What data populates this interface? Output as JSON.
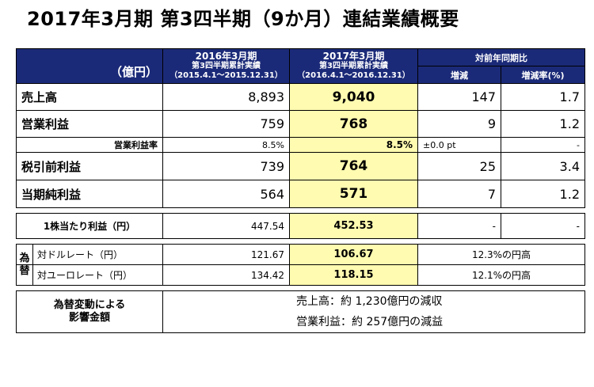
{
  "title": "2017年3月期 第3四半期（9か月）連結業績概要",
  "header": {
    "unit": "（億円）",
    "prev": {
      "line1": "2016年3月期",
      "line2": "第3四半期累計実績",
      "line3": "（2015.4.1〜2015.12.31）"
    },
    "curr": {
      "line1": "2017年3月期",
      "line2": "第3四半期累計実績",
      "line3": "（2016.4.1〜2016.12.31）"
    },
    "yoy": "対前年同期比",
    "change": "増減",
    "change_pct": "増減率(%)"
  },
  "rows": {
    "sales": {
      "label": "売上高",
      "prev": "8,893",
      "curr": "9,040",
      "change": "147",
      "pct": "1.7"
    },
    "op": {
      "label": "営業利益",
      "prev": "759",
      "curr": "768",
      "change": "9",
      "pct": "1.2"
    },
    "op_margin": {
      "label": "営業利益率",
      "prev": "8.5%",
      "curr": "8.5%",
      "change": "±0.0 pt",
      "pct": "-"
    },
    "pretax": {
      "label": "税引前利益",
      "prev": "739",
      "curr": "764",
      "change": "25",
      "pct": "3.4"
    },
    "net": {
      "label": "当期純利益",
      "prev": "564",
      "curr": "571",
      "change": "7",
      "pct": "1.2"
    },
    "eps": {
      "label": "1株当たり利益（円）",
      "prev": "447.54",
      "curr": "452.53",
      "change": "-",
      "pct": "-"
    }
  },
  "fx": {
    "label_top": "為",
    "label_bottom": "替",
    "usd": {
      "label": "対ドルレート（円）",
      "prev": "121.67",
      "curr": "106.67",
      "note": "12.3%の円高"
    },
    "eur": {
      "label": "対ユーロレート（円）",
      "prev": "134.42",
      "curr": "118.15",
      "note": "12.1%の円高"
    }
  },
  "impact": {
    "label_line1": "為替変動による",
    "label_line2": "影響金額",
    "sales_text": "売上高：約 1,230億円の減収",
    "op_text": "営業利益：約 257億円の減益"
  }
}
